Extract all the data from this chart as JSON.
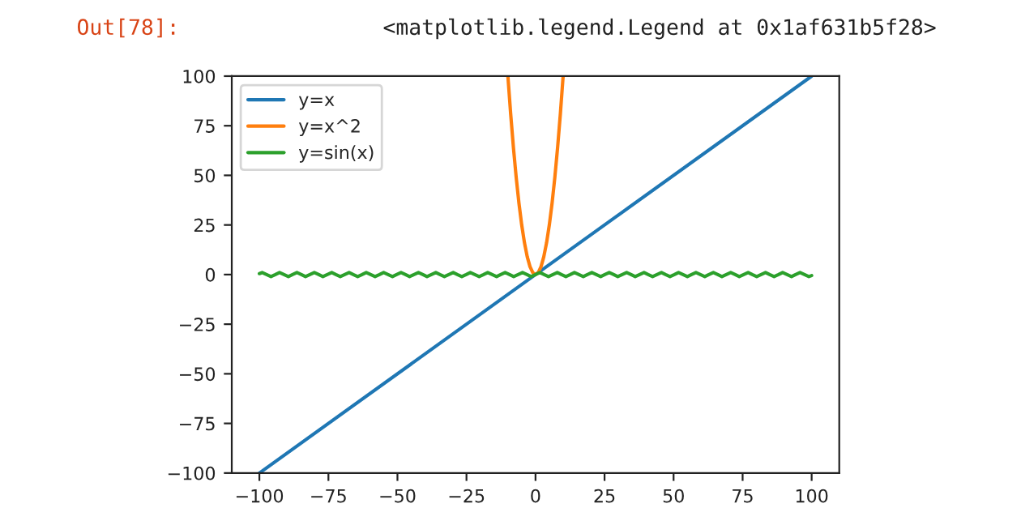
{
  "chart_data": {
    "type": "line",
    "annotations": [
      "Out[78]:",
      "<matplotlib.legend.Legend at 0x1af631b5f28>"
    ],
    "xlim": [
      -110,
      110
    ],
    "ylim": [
      -100,
      100
    ],
    "xticks": [
      {
        "value": -100,
        "label": "−100"
      },
      {
        "value": -75,
        "label": "−75"
      },
      {
        "value": -50,
        "label": "−50"
      },
      {
        "value": -25,
        "label": "−25"
      },
      0,
      25,
      50,
      75,
      100
    ],
    "yticks": [
      {
        "value": -100,
        "label": "−100"
      },
      {
        "value": -75,
        "label": "−75"
      },
      {
        "value": -50,
        "label": "−50"
      },
      {
        "value": -25,
        "label": "−25"
      },
      0,
      25,
      50,
      75,
      100
    ],
    "grid": false,
    "legend": "top left",
    "series": [
      {
        "name": "y=x",
        "color": "#1f77b4",
        "x": [
          -100,
          100
        ],
        "values": [
          -100,
          100
        ]
      },
      {
        "name": "y=x^2",
        "color": "#ff7f0e",
        "x": [
          -10,
          -9,
          -8,
          -7,
          -6,
          -5,
          -4,
          -3,
          -2,
          -1,
          0,
          1,
          2,
          3,
          4,
          5,
          6,
          7,
          8,
          9,
          10
        ],
        "values": [
          100,
          81,
          64,
          49,
          36,
          25,
          16,
          9,
          4,
          1,
          0,
          1,
          4,
          9,
          16,
          25,
          36,
          49,
          64,
          81,
          100
        ]
      },
      {
        "name": "y=sin(x)",
        "color": "#2ca02c",
        "x": [
          -100,
          -99.0,
          -97.4,
          -95.8,
          -94.2,
          -92.7,
          -91.1,
          -89.5,
          -88.0,
          -86.4,
          -84.8,
          -83.3,
          -81.7,
          -80.1,
          -78.5,
          -77.0,
          -75.4,
          -73.8,
          -72.3,
          -70.7,
          -69.1,
          -67.5,
          -66.0,
          -64.4,
          -62.8,
          -61.3,
          -59.7,
          -58.1,
          -56.5,
          -55.0,
          -53.4,
          -51.8,
          -50.3,
          -48.7,
          -47.1,
          -45.6,
          -44.0,
          -42.4,
          -40.8,
          -39.3,
          -37.7,
          -36.1,
          -34.6,
          -33.0,
          -31.4,
          -29.8,
          -28.3,
          -26.7,
          -25.1,
          -23.6,
          -22.0,
          -20.4,
          -18.8,
          -17.3,
          -15.7,
          -14.1,
          -12.6,
          -11.0,
          -9.4,
          -7.9,
          -6.3,
          -4.7,
          -3.1,
          -1.6,
          0,
          1.6,
          3.1,
          4.7,
          6.3,
          7.9,
          9.4,
          11.0,
          12.6,
          14.1,
          15.7,
          17.3,
          18.8,
          20.4,
          22.0,
          23.6,
          25.1,
          26.7,
          28.3,
          29.8,
          31.4,
          33.0,
          34.6,
          36.1,
          37.7,
          39.3,
          40.8,
          42.4,
          44.0,
          45.6,
          47.1,
          48.7,
          50.3,
          51.8,
          53.4,
          55.0,
          56.5,
          58.1,
          59.7,
          61.3,
          62.8,
          64.4,
          66.0,
          67.5,
          69.1,
          70.7,
          72.3,
          73.8,
          75.4,
          77.0,
          78.5,
          80.1,
          81.7,
          83.3,
          84.8,
          86.4,
          88.0,
          89.5,
          91.1,
          92.7,
          94.2,
          95.8,
          97.4,
          99.0,
          100
        ],
        "values": [
          0.5,
          1,
          0,
          -1,
          0,
          1,
          0,
          -1,
          0,
          1,
          0,
          -1,
          0,
          1,
          0,
          -1,
          0,
          1,
          0,
          -1,
          0,
          1,
          0,
          -1,
          0,
          1,
          0,
          -1,
          0,
          1,
          0,
          -1,
          0,
          1,
          0,
          -1,
          0,
          1,
          0,
          -1,
          0,
          1,
          0,
          -1,
          0,
          1,
          0,
          -1,
          0,
          1,
          0,
          -1,
          0,
          1,
          0,
          -1,
          0,
          1,
          0,
          -1,
          0,
          1,
          0,
          -1,
          0,
          1,
          0,
          -1,
          0,
          1,
          0,
          -1,
          0,
          1,
          0,
          -1,
          0,
          1,
          0,
          -1,
          0,
          1,
          0,
          -1,
          0,
          1,
          0,
          -1,
          0,
          1,
          0,
          -1,
          0,
          1,
          0,
          -1,
          0,
          1,
          0,
          -1,
          0,
          1,
          0,
          -1,
          0,
          1,
          0,
          -1,
          0,
          1,
          0,
          -1,
          0,
          1,
          0,
          -1,
          0,
          1,
          0,
          -1,
          0,
          1,
          0,
          -1,
          0,
          1,
          0,
          -1,
          -0.5
        ]
      }
    ]
  }
}
